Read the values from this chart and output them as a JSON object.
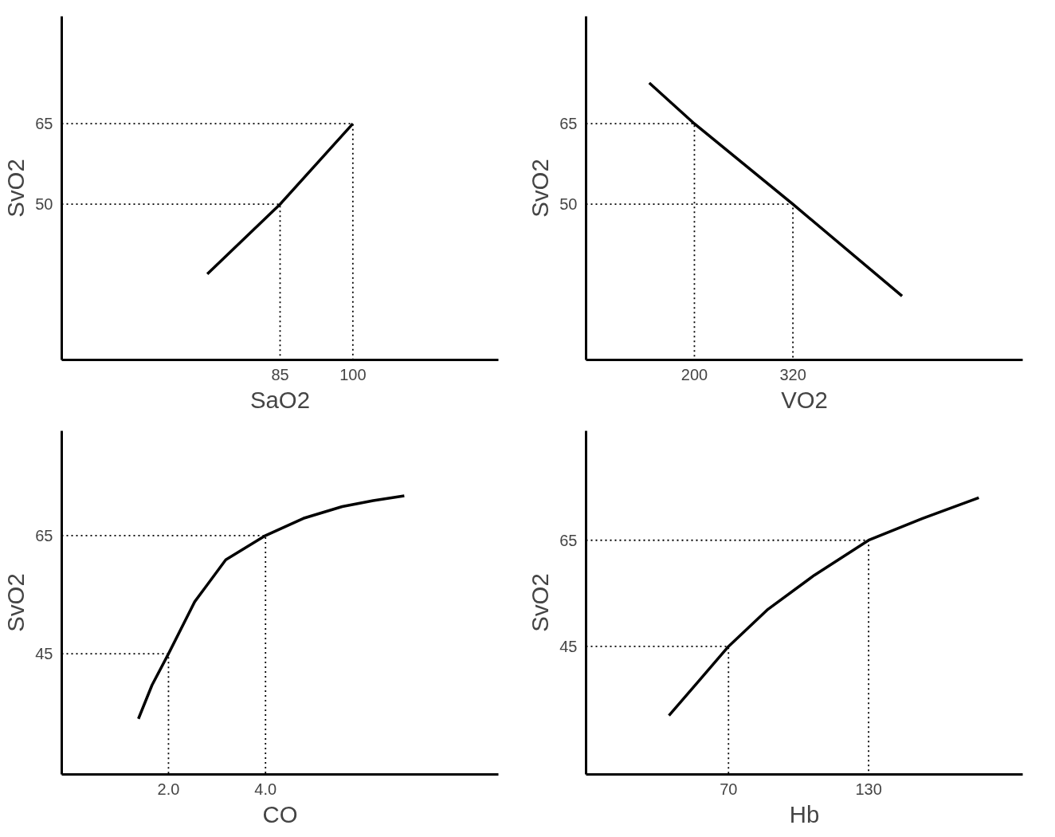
{
  "chart_data": [
    {
      "type": "line",
      "xlabel": "SaO2",
      "ylabel": "SvO2",
      "xlim": [
        40,
        130
      ],
      "ylim": [
        21,
        85
      ],
      "xticks": [
        85,
        100
      ],
      "yticks": [
        50,
        65
      ],
      "grid": false,
      "series": [
        {
          "color": "#000000",
          "line_style": "solid",
          "x": [
            70,
            85,
            100
          ],
          "values": [
            37,
            50,
            65
          ]
        },
        {
          "color": "#000000",
          "line_style": "dotted",
          "x": [
            40,
            100,
            100
          ],
          "values": [
            65,
            65,
            21
          ]
        },
        {
          "color": "#000000",
          "line_style": "dotted",
          "x": [
            40,
            85,
            85
          ],
          "values": [
            50,
            50,
            21
          ]
        }
      ]
    },
    {
      "type": "line",
      "xlabel": "VO2",
      "ylabel": "SvO2",
      "xlim": [
        68,
        600
      ],
      "ylim": [
        21,
        85
      ],
      "xticks": [
        200,
        320
      ],
      "yticks": [
        50,
        65
      ],
      "grid": false,
      "series": [
        {
          "color": "#000000",
          "line_style": "solid",
          "x": [
            145,
            200,
            320,
            453
          ],
          "values": [
            72.6,
            65,
            50,
            32.9
          ]
        },
        {
          "color": "#000000",
          "line_style": "dotted",
          "x": [
            68,
            200,
            200
          ],
          "values": [
            65,
            65,
            21
          ]
        },
        {
          "color": "#000000",
          "line_style": "dotted",
          "x": [
            68,
            320,
            320
          ],
          "values": [
            50,
            50,
            21
          ]
        }
      ]
    },
    {
      "type": "line",
      "xlabel": "CO",
      "ylabel": "SvO2",
      "xlim": [
        -0.2,
        8.8
      ],
      "ylim": [
        24.6,
        82.7
      ],
      "xticks": [
        {
          "value": 2,
          "label": "2.0"
        },
        {
          "value": 4,
          "label": "4.0"
        }
      ],
      "yticks": [
        45,
        65
      ],
      "grid": false,
      "series": [
        {
          "color": "#000000",
          "line_style": "solid",
          "x": [
            1.38,
            1.66,
            2.0,
            2.54,
            3.18,
            4.0,
            4.78,
            5.58,
            6.22,
            6.86
          ],
          "values": [
            34.0,
            39.7,
            45,
            53.8,
            60.9,
            65,
            67.9,
            69.9,
            70.9,
            71.7
          ]
        },
        {
          "color": "#000000",
          "line_style": "dotted",
          "x": [
            -0.2,
            4,
            4
          ],
          "values": [
            65,
            65,
            24.6
          ]
        },
        {
          "color": "#000000",
          "line_style": "dotted",
          "x": [
            -0.2,
            2,
            2
          ],
          "values": [
            45,
            45,
            24.6
          ]
        }
      ]
    },
    {
      "type": "line",
      "xlabel": "Hb",
      "ylabel": "SvO2",
      "xlim": [
        9,
        196
      ],
      "ylim": [
        20.9,
        85.6
      ],
      "xticks": [
        70,
        130
      ],
      "yticks": [
        45,
        65
      ],
      "grid": false,
      "series": [
        {
          "color": "#000000",
          "line_style": "solid",
          "x": [
            44.5,
            57.1,
            70,
            86.9,
            106.7,
            130,
            153.1,
            177.2
          ],
          "values": [
            32.0,
            38.4,
            45,
            52.0,
            58.4,
            65,
            69.1,
            73.0
          ]
        },
        {
          "color": "#000000",
          "line_style": "dotted",
          "x": [
            9,
            130,
            130
          ],
          "values": [
            65,
            65,
            20.9
          ]
        },
        {
          "color": "#000000",
          "line_style": "dotted",
          "x": [
            9,
            70,
            70
          ],
          "values": [
            45,
            45,
            20.9
          ]
        }
      ]
    }
  ]
}
